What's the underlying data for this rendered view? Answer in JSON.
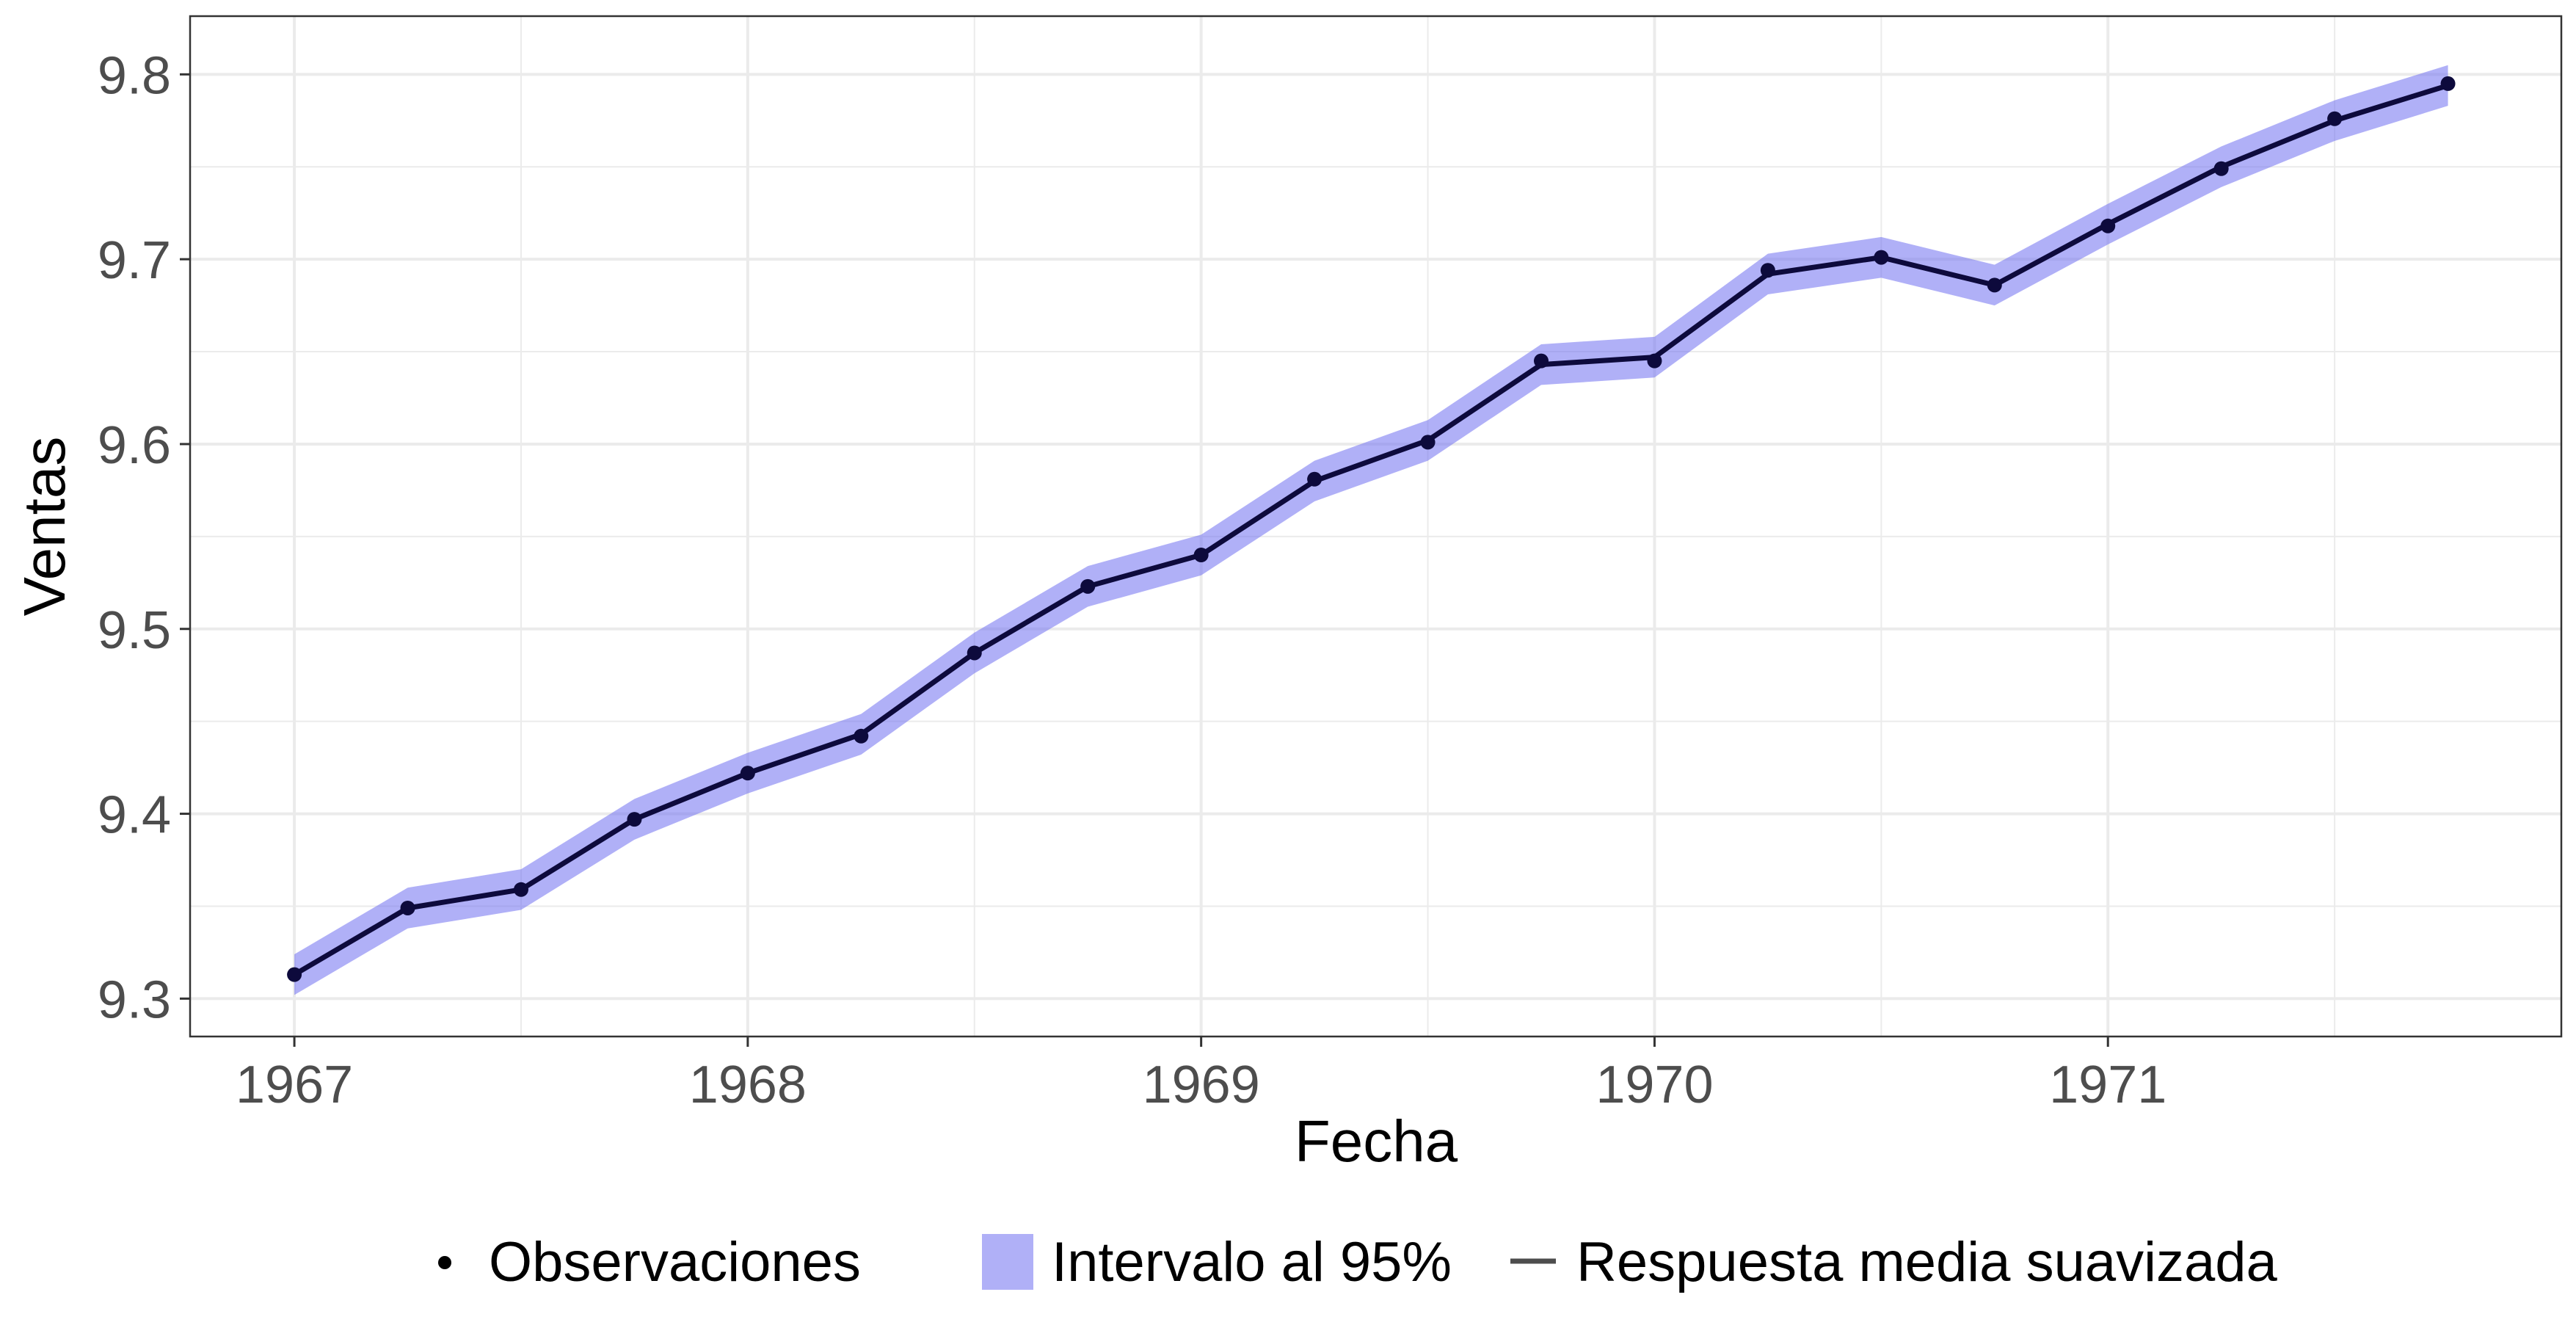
{
  "chart_data": {
    "type": "line",
    "title": "",
    "xlabel": "Fecha",
    "ylabel": "Ventas",
    "x_ticks": [
      "1967",
      "1968",
      "1969",
      "1970",
      "1971"
    ],
    "x_tick_values": [
      1967,
      1968,
      1969,
      1970,
      1971
    ],
    "y_ticks": [
      "9.3",
      "9.4",
      "9.5",
      "9.6",
      "9.7",
      "9.8"
    ],
    "y_tick_values": [
      9.3,
      9.4,
      9.5,
      9.6,
      9.7,
      9.8
    ],
    "xlim": [
      1966.77,
      1972.0
    ],
    "ylim": [
      9.2795,
      9.8315
    ],
    "grid": true,
    "legend_position": "bottom",
    "x": [
      1967.0,
      1967.25,
      1967.5,
      1967.75,
      1968.0,
      1968.25,
      1968.5,
      1968.75,
      1969.0,
      1969.25,
      1969.5,
      1969.75,
      1970.0,
      1970.25,
      1970.5,
      1970.75,
      1971.0,
      1971.25,
      1971.5,
      1971.75
    ],
    "series": [
      {
        "name": "Observaciones",
        "kind": "points",
        "values": [
          9.313,
          9.349,
          9.359,
          9.397,
          9.422,
          9.442,
          9.487,
          9.523,
          9.54,
          9.581,
          9.601,
          9.645,
          9.645,
          9.694,
          9.701,
          9.686,
          9.718,
          9.749,
          9.776,
          9.795
        ]
      },
      {
        "name": "Respuesta media suavizada",
        "kind": "line",
        "values": [
          9.313,
          9.349,
          9.359,
          9.397,
          9.422,
          9.443,
          9.487,
          9.523,
          9.54,
          9.58,
          9.602,
          9.643,
          9.647,
          9.692,
          9.701,
          9.686,
          9.719,
          9.75,
          9.775,
          9.794
        ]
      },
      {
        "name": "Intervalo al 95%",
        "kind": "band",
        "lower": [
          9.302,
          9.338,
          9.348,
          9.386,
          9.411,
          9.432,
          9.476,
          9.512,
          9.529,
          9.569,
          9.591,
          9.632,
          9.636,
          9.681,
          9.69,
          9.675,
          9.708,
          9.739,
          9.764,
          9.783
        ],
        "upper": [
          9.324,
          9.36,
          9.37,
          9.408,
          9.433,
          9.454,
          9.498,
          9.534,
          9.551,
          9.591,
          9.613,
          9.654,
          9.658,
          9.703,
          9.712,
          9.697,
          9.73,
          9.761,
          9.786,
          9.805
        ]
      }
    ],
    "colors": {
      "line": "#0d0a3c",
      "point": "#0d0a3c",
      "band": "#6f6ff0",
      "grid": "#ebebeb",
      "axis_text": "#4d4d4d",
      "title_text": "#000000"
    }
  }
}
